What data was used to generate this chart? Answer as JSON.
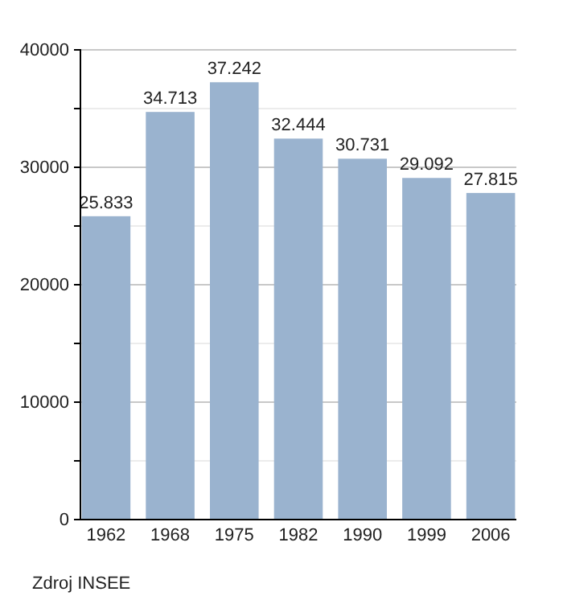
{
  "chart_data": {
    "type": "bar",
    "categories": [
      "1962",
      "1968",
      "1975",
      "1982",
      "1990",
      "1999",
      "2006"
    ],
    "values": [
      25833,
      34713,
      37242,
      32444,
      30731,
      29092,
      27815
    ],
    "value_labels": [
      "25.833",
      "34.713",
      "37.242",
      "32.444",
      "30.731",
      "29.092",
      "27.815"
    ],
    "color": "#9ab3cf",
    "ylim": [
      0,
      40000
    ],
    "yticks": [
      0,
      {
        "value": 5000,
        "label": null
      },
      10000,
      {
        "value": 15000,
        "label": null
      },
      20000,
      {
        "value": 25000,
        "label": null
      },
      30000,
      {
        "value": 35000,
        "label": null
      },
      40000
    ],
    "grid": true,
    "annotations": [
      "Zdroj INSEE"
    ]
  }
}
